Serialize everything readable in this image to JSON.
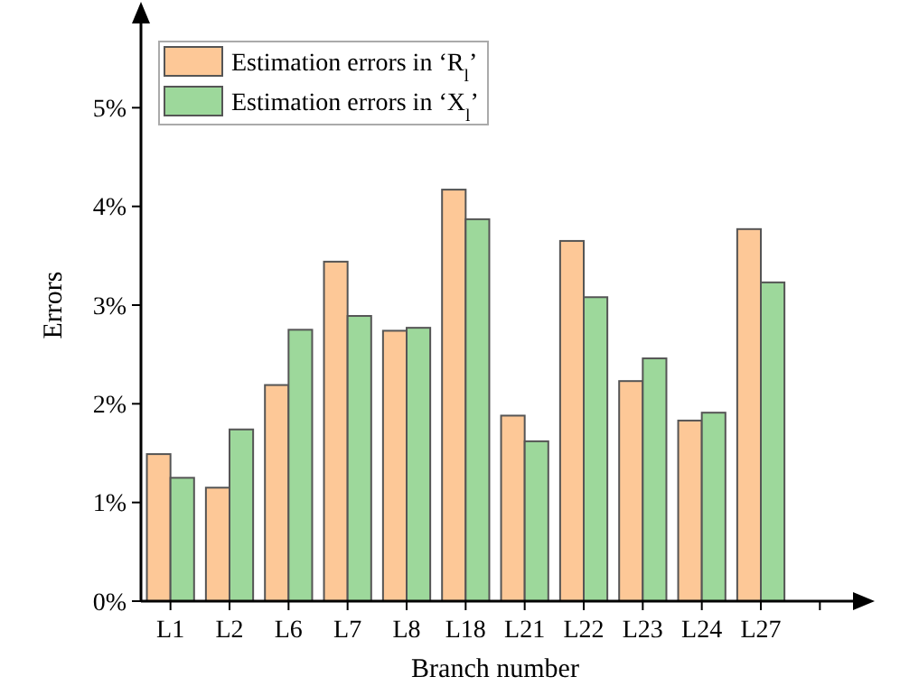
{
  "chart_data": {
    "type": "bar",
    "xlabel": "Branch number",
    "ylabel": "Errors",
    "categories": [
      "L1",
      "L2",
      "L6",
      "L7",
      "L8",
      "L18",
      "L21",
      "L22",
      "L23",
      "L24",
      "L27",
      null
    ],
    "series": [
      {
        "name": "Estimation errors in ‘R$_{l}$’",
        "color": "#fdc897",
        "values": [
          1.49,
          1.15,
          2.19,
          3.44,
          2.74,
          4.17,
          1.88,
          3.65,
          2.23,
          1.83,
          3.77,
          null
        ]
      },
      {
        "name": "Estimation errors in ‘X$_{l}$’",
        "color": "#9dd89b",
        "values": [
          1.25,
          1.74,
          2.75,
          2.89,
          2.77,
          3.87,
          1.62,
          3.08,
          2.46,
          1.91,
          3.23,
          null
        ]
      }
    ],
    "ylim": [
      0,
      6
    ],
    "yticks": [
      {
        "value": 0,
        "label": "0%"
      },
      {
        "value": 1,
        "label": "1%"
      },
      {
        "value": 2,
        "label": "2%"
      },
      {
        "value": 3,
        "label": "3%"
      },
      {
        "value": 4,
        "label": "4%"
      },
      {
        "value": 5,
        "label": "5%"
      }
    ],
    "legend": "top left",
    "grid": false
  }
}
